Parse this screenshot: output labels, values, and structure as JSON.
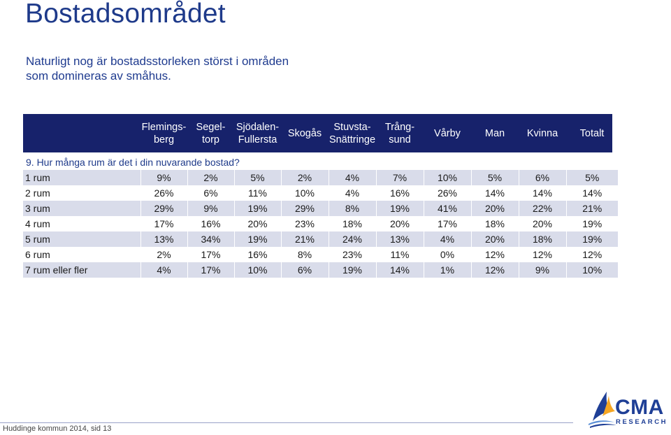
{
  "page": {
    "title": "Bostadsområdet",
    "subtitle_line1": "Naturligt nog är bostadsstorleken störst i områden",
    "subtitle_line2": "som domineras av småhus.",
    "question": "9. Hur många rum är det i din nuvarande bostad?",
    "footer": "Huddinge kommun 2014, sid 13"
  },
  "logo": {
    "name": "CMA",
    "sub": "RESEARCH"
  },
  "colors": {
    "header_bg": "#17226b",
    "row_shade": "#d9dcea",
    "title": "#1e3a8a"
  },
  "table": {
    "columns": [
      {
        "line1": "Flemings-",
        "line2": "berg"
      },
      {
        "line1": "Segel-",
        "line2": "torp"
      },
      {
        "line1": "Sjödalen-",
        "line2": "Fullersta"
      },
      {
        "line1": "Skogås",
        "line2": ""
      },
      {
        "line1": "Stuvsta-",
        "line2": "Snättringe"
      },
      {
        "line1": "Trång-",
        "line2": "sund"
      },
      {
        "line1": "Vårby",
        "line2": ""
      },
      {
        "line1": "Man",
        "line2": ""
      },
      {
        "line1": "Kvinna",
        "line2": ""
      },
      {
        "line1": "Totalt",
        "line2": ""
      }
    ],
    "rows": [
      {
        "label": "1 rum",
        "values": [
          "9%",
          "2%",
          "5%",
          "2%",
          "4%",
          "7%",
          "10%",
          "5%",
          "6%",
          "5%"
        ]
      },
      {
        "label": "2 rum",
        "values": [
          "26%",
          "6%",
          "11%",
          "10%",
          "4%",
          "16%",
          "26%",
          "14%",
          "14%",
          "14%"
        ]
      },
      {
        "label": "3 rum",
        "values": [
          "29%",
          "9%",
          "19%",
          "29%",
          "8%",
          "19%",
          "41%",
          "20%",
          "22%",
          "21%"
        ]
      },
      {
        "label": "4 rum",
        "values": [
          "17%",
          "16%",
          "20%",
          "23%",
          "18%",
          "20%",
          "17%",
          "18%",
          "20%",
          "19%"
        ]
      },
      {
        "label": "5 rum",
        "values": [
          "13%",
          "34%",
          "19%",
          "21%",
          "24%",
          "13%",
          "4%",
          "20%",
          "18%",
          "19%"
        ]
      },
      {
        "label": "6 rum",
        "values": [
          "2%",
          "17%",
          "16%",
          "8%",
          "23%",
          "11%",
          "0%",
          "12%",
          "12%",
          "12%"
        ]
      },
      {
        "label": "7 rum eller fler",
        "values": [
          "4%",
          "17%",
          "10%",
          "6%",
          "19%",
          "14%",
          "1%",
          "12%",
          "9%",
          "10%"
        ]
      }
    ]
  }
}
